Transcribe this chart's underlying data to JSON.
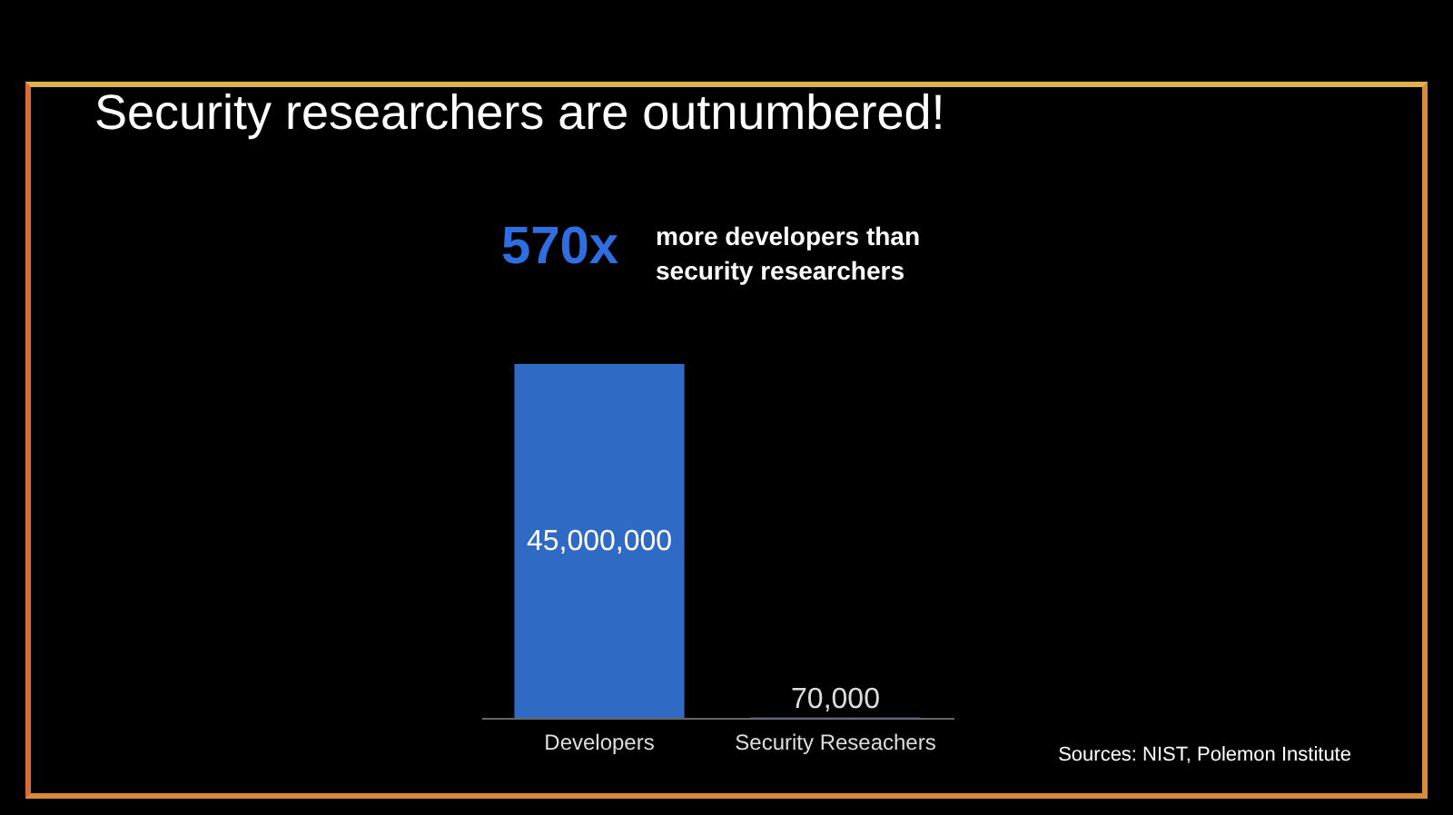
{
  "chart_data": {
    "type": "bar",
    "title": "Security researchers are outnumbered!",
    "categories": [
      "Developers",
      "Security Reseachers"
    ],
    "values": [
      45000000,
      70000
    ],
    "color": "#2f6ac4",
    "value_labels": [
      "45,000,000",
      "70,000"
    ],
    "annotations": [
      "570x",
      "more developers than security researchers",
      "Sources: NIST, Polemon Institute"
    ]
  }
}
